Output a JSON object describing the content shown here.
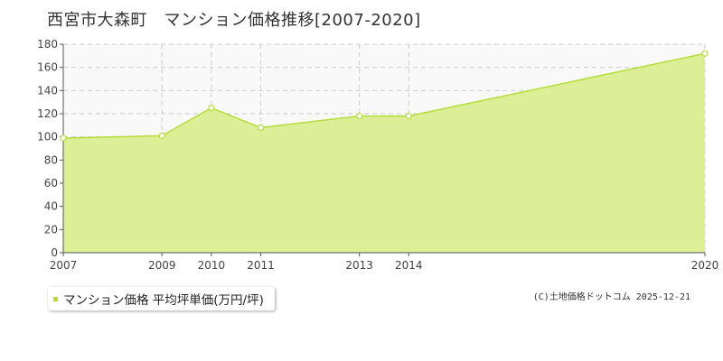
{
  "chart_data": {
    "type": "area",
    "title": "西宮市大森町　マンション価格推移[2007-2020]",
    "x": [
      "2007",
      "2009",
      "2010",
      "2011",
      "2013",
      "2014",
      "2020"
    ],
    "series": [
      {
        "name": "マンション価格 平均坪単価(万円/坪)",
        "values": [
          99,
          101,
          125,
          108,
          118,
          118,
          172
        ]
      }
    ],
    "xlabel": "",
    "ylabel": "",
    "ylim": [
      0,
      180
    ],
    "yticks": [
      0,
      20,
      40,
      60,
      80,
      100,
      120,
      140,
      160,
      180
    ],
    "grid": true,
    "legend_position": "bottom-left",
    "colors": {
      "fill": "#dcee96",
      "line": "#b5dd3c",
      "marker_fill": "#ffffff",
      "grid": "#cccccc",
      "axis": "#555555",
      "plot_bg": "#f9f9f9"
    }
  },
  "credit": "(C)土地価格ドットコム 2025-12-21"
}
